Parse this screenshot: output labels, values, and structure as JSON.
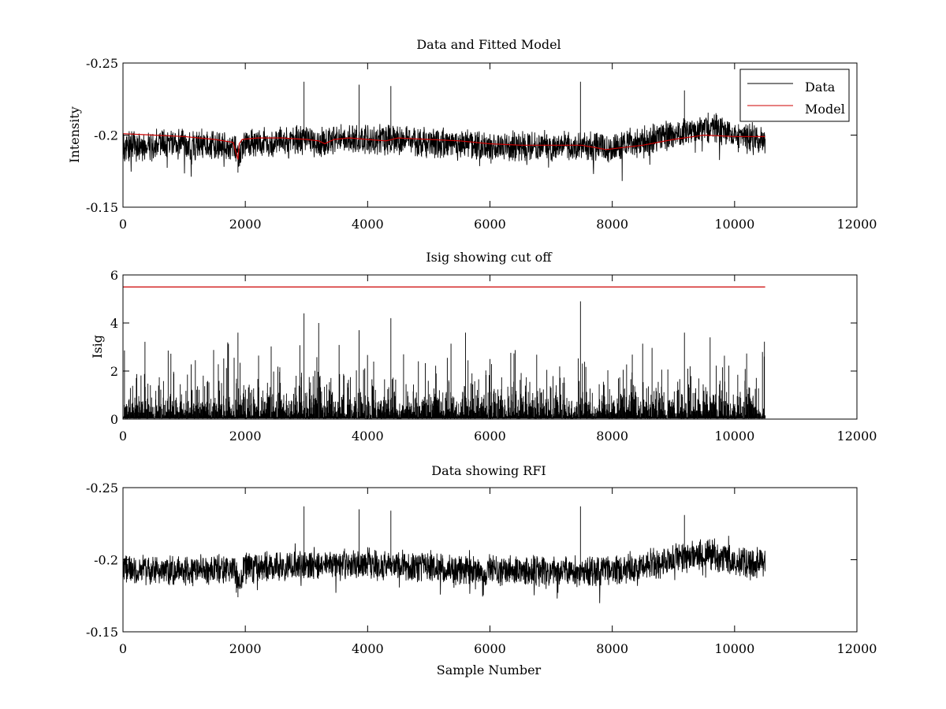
{
  "chart_data": [
    {
      "type": "line",
      "title": "Data and Fitted Model",
      "xlabel": "",
      "ylabel": "Intensity",
      "xlim": [
        0,
        12000
      ],
      "ylim": [
        -0.25,
        -0.15
      ],
      "y_reversed": true,
      "xticks": [
        "0",
        "2000",
        "4000",
        "6000",
        "8000",
        "10000",
        "12000"
      ],
      "yticks": [
        "-0.15",
        "-0.2",
        "-0.25"
      ],
      "legend": {
        "placement": "top-right",
        "entries": [
          "Data",
          "Model"
        ]
      },
      "series": [
        {
          "name": "Data",
          "color": "#000000",
          "style": "noise",
          "x_range": [
            0,
            10500
          ],
          "level": [
            [
              0,
              -0.193
            ],
            [
              1800,
              -0.193
            ],
            [
              1900,
              -0.185
            ],
            [
              2000,
              -0.195
            ],
            [
              4000,
              -0.197
            ],
            [
              6000,
              -0.192
            ],
            [
              8000,
              -0.192
            ],
            [
              9000,
              -0.2
            ],
            [
              9600,
              -0.205
            ],
            [
              10000,
              -0.198
            ],
            [
              10500,
              -0.197
            ]
          ],
          "spread": 0.012,
          "spikes": [
            [
              1880,
              -0.174
            ],
            [
              2960,
              -0.237
            ],
            [
              3860,
              -0.235
            ],
            [
              4380,
              -0.234
            ],
            [
              7480,
              -0.237
            ],
            [
              9180,
              -0.231
            ]
          ]
        },
        {
          "name": "Model",
          "color": "#cc0000",
          "style": "line",
          "x": [
            0,
            500,
            1000,
            1500,
            1800,
            1880,
            1900,
            1950,
            2200,
            2600,
            3000,
            3200,
            3300,
            3450,
            3700,
            4000,
            4300,
            4500,
            5000,
            5500,
            6000,
            6500,
            7000,
            7500,
            7900,
            8500,
            9000,
            9500,
            10000,
            10500
          ],
          "y": [
            -0.201,
            -0.2,
            -0.199,
            -0.197,
            -0.195,
            -0.183,
            -0.194,
            -0.197,
            -0.198,
            -0.198,
            -0.197,
            -0.196,
            -0.194,
            -0.197,
            -0.198,
            -0.197,
            -0.196,
            -0.198,
            -0.197,
            -0.196,
            -0.194,
            -0.193,
            -0.193,
            -0.193,
            -0.19,
            -0.193,
            -0.197,
            -0.2,
            -0.199,
            -0.199
          ]
        }
      ]
    },
    {
      "type": "line",
      "title": "Isig showing cut off",
      "xlabel": "",
      "ylabel": "Isig",
      "xlim": [
        0,
        12000
      ],
      "ylim": [
        0,
        6
      ],
      "xticks": [
        "0",
        "2000",
        "4000",
        "6000",
        "8000",
        "10000",
        "12000"
      ],
      "yticks": [
        "0",
        "2",
        "4",
        "6"
      ],
      "series": [
        {
          "color": "#000000",
          "style": "noise-positive",
          "x_range": [
            0,
            10500
          ],
          "typical_max": 1.7,
          "spikes": [
            [
              1880,
              3.6
            ],
            [
              2960,
              4.4
            ],
            [
              3200,
              4.0
            ],
            [
              3860,
              3.7
            ],
            [
              4380,
              4.2
            ],
            [
              5600,
              3.6
            ],
            [
              7480,
              4.9
            ],
            [
              9180,
              3.6
            ],
            [
              9600,
              3.4
            ]
          ]
        },
        {
          "color": "#cc0000",
          "style": "line",
          "x": [
            0,
            10500
          ],
          "y": [
            5.5,
            5.5
          ]
        }
      ]
    },
    {
      "type": "line",
      "title": "Data showing RFI",
      "xlabel": "Sample Number",
      "ylabel": "",
      "xlim": [
        0,
        12000
      ],
      "ylim": [
        -0.25,
        -0.15
      ],
      "y_reversed": true,
      "xticks": [
        "0",
        "2000",
        "4000",
        "6000",
        "8000",
        "10000",
        "12000"
      ],
      "yticks": [
        "-0.15",
        "-0.2",
        "-0.25"
      ],
      "series": [
        {
          "color": "#000000",
          "style": "noise",
          "x_range": [
            0,
            10500
          ],
          "level": [
            [
              0,
              -0.193
            ],
            [
              1800,
              -0.193
            ],
            [
              1900,
              -0.185
            ],
            [
              2000,
              -0.195
            ],
            [
              4000,
              -0.197
            ],
            [
              6000,
              -0.192
            ],
            [
              8000,
              -0.192
            ],
            [
              9000,
              -0.2
            ],
            [
              9600,
              -0.205
            ],
            [
              10000,
              -0.198
            ],
            [
              10500,
              -0.197
            ]
          ],
          "spread": 0.012,
          "spikes": [
            [
              1880,
              -0.174
            ],
            [
              2960,
              -0.237
            ],
            [
              3860,
              -0.235
            ],
            [
              4380,
              -0.234
            ],
            [
              7480,
              -0.237
            ],
            [
              9180,
              -0.231
            ]
          ]
        }
      ]
    }
  ]
}
